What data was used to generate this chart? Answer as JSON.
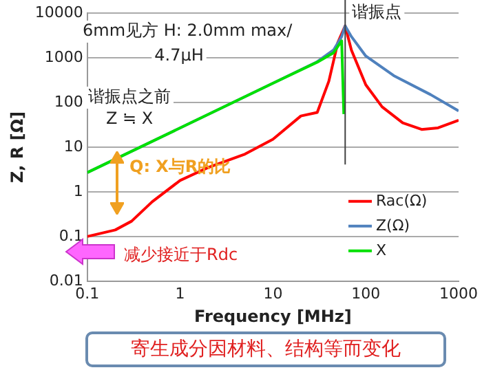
{
  "chart_data": {
    "type": "line",
    "xlabel": "Frequency [MHz]",
    "ylabel": "Z, R [Ω]",
    "log": "xy",
    "xlim": [
      0.1,
      1000
    ],
    "xticks": [
      0.1,
      1,
      10,
      100,
      1000
    ],
    "ylim": [
      0.01,
      10000
    ],
    "yticks": [
      0.01,
      0.1,
      1,
      10,
      100,
      1000,
      10000
    ],
    "grid": "y",
    "legend": "bottom right",
    "marker": "none",
    "line_style": "solid",
    "series": [
      {
        "name": "Rac(Ω)",
        "color": "#ff0000",
        "x": [
          0.1,
          0.2,
          0.3,
          0.5,
          1,
          2,
          5,
          10,
          20,
          30,
          40,
          50,
          60,
          70,
          100,
          150,
          250,
          400,
          600,
          1000
        ],
        "values": [
          0.1,
          0.14,
          0.22,
          0.6,
          1.8,
          3.5,
          7,
          15,
          50,
          60,
          300,
          2200,
          5200,
          1500,
          250,
          80,
          35,
          25,
          27,
          40
        ]
      },
      {
        "name": "Z(Ω)",
        "color": "#4f81bd",
        "x": [
          0.1,
          1,
          10,
          30,
          45,
          55,
          60,
          70,
          100,
          200,
          500,
          1000
        ],
        "values": [
          2.7,
          27,
          270,
          820,
          1500,
          3000,
          5200,
          3000,
          1100,
          400,
          150,
          65
        ]
      },
      {
        "name": "X",
        "color": "#00e000",
        "x": [
          0.1,
          1,
          10,
          30,
          45,
          55,
          58
        ],
        "values": [
          2.7,
          27,
          270,
          800,
          1300,
          2400,
          55
        ]
      }
    ],
    "ref_lines": [
      {
        "axis": "x",
        "value": 60,
        "label": "谐振点",
        "color": "#404040"
      }
    ],
    "annotations": [
      "6mm见方 H: 2.0mm max/\n4.7μH",
      "谐振点之前\nZ ≒ X",
      "Q: X与R的比",
      "减少接近于Rdc",
      "寄生成分因材料、结构等而变化"
    ]
  }
}
